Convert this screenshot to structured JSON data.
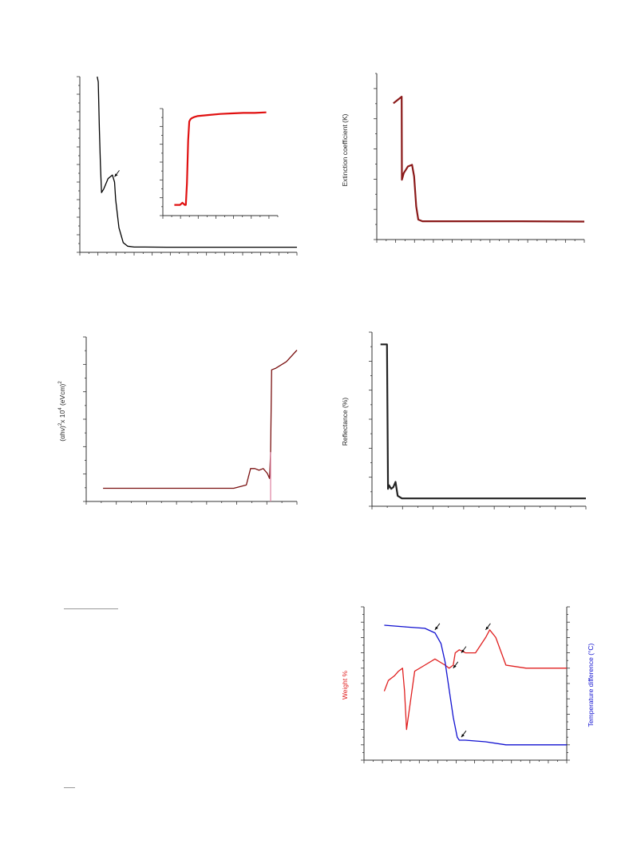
{
  "chart_data": [
    {
      "id": "absorbance",
      "type": "line",
      "title": "",
      "xlabel": "",
      "ylabel": "",
      "series": [
        {
          "name": "",
          "color": "#000000",
          "x": [
            0.08,
            0.085,
            0.09,
            0.095,
            0.1,
            0.11,
            0.13,
            0.15,
            0.16,
            0.165,
            0.18,
            0.2,
            0.22,
            0.25,
            0.3,
            0.4,
            0.6,
            1.0
          ],
          "y": [
            1.0,
            0.97,
            0.7,
            0.5,
            0.34,
            0.36,
            0.42,
            0.44,
            0.4,
            0.3,
            0.14,
            0.055,
            0.035,
            0.03,
            0.03,
            0.029,
            0.029,
            0.029
          ]
        }
      ],
      "annotations": [
        {
          "type": "arrow",
          "x": 0.16,
          "y": 0.43
        }
      ]
    },
    {
      "id": "absorbance-inset",
      "type": "line",
      "title": "",
      "series": [
        {
          "name": "",
          "color": "#e01010",
          "x": [
            0.1,
            0.15,
            0.17,
            0.19,
            0.2,
            0.21,
            0.22,
            0.23,
            0.24,
            0.25,
            0.27,
            0.3,
            0.4,
            0.5,
            0.6,
            0.7,
            0.8,
            0.9
          ],
          "y": [
            0.1,
            0.1,
            0.12,
            0.1,
            0.1,
            0.3,
            0.7,
            0.88,
            0.9,
            0.91,
            0.92,
            0.93,
            0.94,
            0.95,
            0.955,
            0.96,
            0.96,
            0.965
          ]
        }
      ]
    },
    {
      "id": "extinction",
      "type": "line",
      "title": "",
      "xlabel": "",
      "ylabel": "Extinction coefficient (K)",
      "series": [
        {
          "name": "",
          "color": "#8b1a1a",
          "x": [
            0.08,
            0.1,
            0.12,
            0.121,
            0.13,
            0.15,
            0.17,
            0.18,
            0.19,
            0.2,
            0.22,
            0.3,
            0.5,
            0.7,
            1.0
          ],
          "y": [
            0.82,
            0.84,
            0.86,
            0.36,
            0.4,
            0.44,
            0.45,
            0.38,
            0.2,
            0.12,
            0.11,
            0.11,
            0.11,
            0.11,
            0.108
          ]
        }
      ]
    },
    {
      "id": "tauc",
      "type": "line",
      "title": "",
      "xlabel": "",
      "ylabel_parts": [
        "(αhν)",
        "2",
        "x 10",
        "4",
        " (eVcm)",
        "2"
      ],
      "series": [
        {
          "name": "",
          "color": "#7a1010",
          "x": [
            0.08,
            0.2,
            0.4,
            0.6,
            0.7,
            0.76,
            0.78,
            0.8,
            0.82,
            0.84,
            0.86,
            0.87,
            0.875,
            0.88,
            0.9,
            0.95,
            1.0
          ],
          "y": [
            0.08,
            0.08,
            0.08,
            0.08,
            0.08,
            0.1,
            0.2,
            0.2,
            0.19,
            0.2,
            0.17,
            0.14,
            0.3,
            0.8,
            0.81,
            0.85,
            0.92
          ]
        },
        {
          "name": "",
          "color": "#e08aa8",
          "x": [
            0.875,
            0.875
          ],
          "y": [
            0.0,
            0.3
          ]
        }
      ]
    },
    {
      "id": "reflectance",
      "type": "line",
      "title": "",
      "xlabel": "",
      "ylabel": "Reflectance (%)",
      "series": [
        {
          "name": "",
          "color": "#222222",
          "x": [
            0.04,
            0.07,
            0.075,
            0.08,
            0.09,
            0.1,
            0.11,
            0.12,
            0.14,
            0.2,
            0.4,
            0.6,
            0.8,
            1.0
          ],
          "y": [
            0.93,
            0.93,
            0.1,
            0.12,
            0.1,
            0.11,
            0.14,
            0.06,
            0.045,
            0.045,
            0.045,
            0.045,
            0.045,
            0.045
          ]
        }
      ]
    },
    {
      "id": "thermal",
      "type": "line",
      "title": "",
      "xlabel": "",
      "ylabel": "Weight %",
      "y2label": "Temperature difference (°C)",
      "series": [
        {
          "name": "",
          "color": "#e02020",
          "x": [
            0.1,
            0.12,
            0.15,
            0.17,
            0.19,
            0.2,
            0.21,
            0.25,
            0.3,
            0.35,
            0.4,
            0.42,
            0.44,
            0.45,
            0.47,
            0.5,
            0.55,
            0.6,
            0.62,
            0.65,
            0.7,
            0.8,
            1.0
          ],
          "y": [
            0.45,
            0.52,
            0.55,
            0.58,
            0.6,
            0.45,
            0.2,
            0.58,
            0.62,
            0.66,
            0.62,
            0.6,
            0.62,
            0.7,
            0.72,
            0.7,
            0.7,
            0.8,
            0.85,
            0.8,
            0.62,
            0.6,
            0.6
          ]
        },
        {
          "name": "",
          "color": "#1010d0",
          "x": [
            0.1,
            0.2,
            0.3,
            0.35,
            0.38,
            0.4,
            0.42,
            0.44,
            0.46,
            0.47,
            0.5,
            0.6,
            0.7,
            0.8,
            1.0
          ],
          "y": [
            0.88,
            0.87,
            0.86,
            0.83,
            0.76,
            0.64,
            0.46,
            0.28,
            0.15,
            0.13,
            0.13,
            0.12,
            0.1,
            0.1,
            0.1
          ]
        }
      ],
      "annotations": [
        {
          "type": "arrow",
          "x": 0.35,
          "y": 0.85
        },
        {
          "type": "arrow",
          "x": 0.44,
          "y": 0.6
        },
        {
          "type": "arrow",
          "x": 0.48,
          "y": 0.7
        },
        {
          "type": "arrow",
          "x": 0.6,
          "y": 0.85
        },
        {
          "type": "arrow",
          "x": 0.48,
          "y": 0.15
        }
      ]
    }
  ]
}
